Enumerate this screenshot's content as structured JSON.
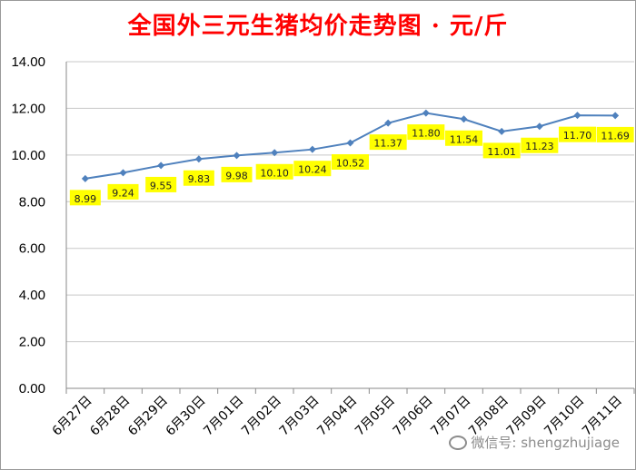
{
  "chart_data": {
    "type": "line",
    "title": "全国外三元生猪均价走势图 · 元/斤",
    "categories": [
      "6月27日",
      "6月28日",
      "6月29日",
      "6月30日",
      "7月01日",
      "7月02日",
      "7月03日",
      "7月04日",
      "7月05日",
      "7月06日",
      "7月07日",
      "7月08日",
      "7月09日",
      "7月10日",
      "7月11日"
    ],
    "series": [
      {
        "values": [
          8.99,
          9.24,
          9.55,
          9.83,
          9.98,
          10.1,
          10.24,
          10.52,
          11.37,
          11.8,
          11.54,
          11.01,
          11.23,
          11.7,
          11.69
        ]
      }
    ],
    "value_labels": [
      "8.99",
      "9.24",
      "9.55",
      "9.83",
      "9.98",
      "10.10",
      "10.24",
      "10.52",
      "11.37",
      "11.80",
      "11.54",
      "11.01",
      "11.23",
      "11.70",
      "11.69"
    ],
    "ylim": [
      0,
      14
    ],
    "yticks": [
      "0.00",
      "2.00",
      "4.00",
      "6.00",
      "8.00",
      "10.00",
      "12.00",
      "14.00"
    ],
    "grid": true,
    "legend": "none",
    "line_color": "#4f81bd",
    "label_bg_color": "#ffff00",
    "title_color": "#ff0000"
  },
  "watermark": {
    "text": "微信号: shengzhujiage",
    "icon": "wechat-icon"
  }
}
